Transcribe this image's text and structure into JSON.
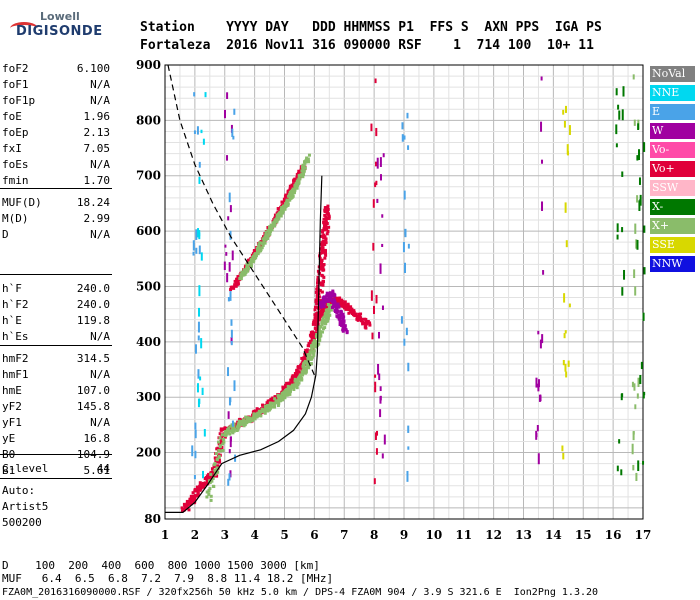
{
  "logo": {
    "line1": "Lowell",
    "line2": "DIGISONDE"
  },
  "header": {
    "row1": "Station    YYYY DAY   DDD HHMMSS P1  FFS S  AXN PPS  IGA PS",
    "row2": "Fortaleza  2016 Nov11 316 090000 RSF    1  714 100  10+ 11"
  },
  "params_a": [
    {
      "k": "foF2",
      "v": "6.100"
    },
    {
      "k": "foF1",
      "v": "N/A"
    },
    {
      "k": "foF1p",
      "v": "N/A"
    },
    {
      "k": "foE",
      "v": "1.96"
    },
    {
      "k": "foEp",
      "v": "2.13"
    },
    {
      "k": "fxI",
      "v": "7.05"
    },
    {
      "k": "foEs",
      "v": "N/A"
    },
    {
      "k": "fmin",
      "v": "1.70"
    }
  ],
  "params_b": [
    {
      "k": "MUF(D)",
      "v": "18.24"
    },
    {
      "k": "M(D)",
      "v": "2.99"
    },
    {
      "k": "D",
      "v": "N/A"
    }
  ],
  "params_c": [
    {
      "k": "h`F",
      "v": "240.0"
    },
    {
      "k": "h`F2",
      "v": "240.0"
    },
    {
      "k": "h`E",
      "v": "119.8"
    },
    {
      "k": "h`Es",
      "v": "N/A"
    }
  ],
  "params_d": [
    {
      "k": "hmF2",
      "v": "314.5"
    },
    {
      "k": "hmF1",
      "v": "N/A"
    },
    {
      "k": "hmE",
      "v": "107.0"
    },
    {
      "k": "yF2",
      "v": "145.8"
    },
    {
      "k": "yF1",
      "v": "N/A"
    },
    {
      "k": "yE",
      "v": "16.8"
    },
    {
      "k": "B0",
      "v": "104.9"
    },
    {
      "k": "B1",
      "v": "5.61"
    }
  ],
  "params_e": [
    {
      "k": "C-level",
      "v": "44"
    }
  ],
  "autoscale": {
    "line1": "Auto:",
    "line2": "Artist5",
    "line3": "500200"
  },
  "legend": [
    {
      "label": "NoVal",
      "bg": "#808080",
      "fg": "#ffffff"
    },
    {
      "label": "NNE",
      "bg": "#00d8f0",
      "fg": "#ffffff"
    },
    {
      "label": "E",
      "bg": "#4aa3e8",
      "fg": "#ffffff"
    },
    {
      "label": "W",
      "bg": "#a000a0",
      "fg": "#ffffff"
    },
    {
      "label": "Vo-",
      "bg": "#ff4aa8",
      "fg": "#ffffff"
    },
    {
      "label": "Vo+",
      "bg": "#e0003a",
      "fg": "#ffffff"
    },
    {
      "label": "SSW",
      "bg": "#ffb6c8",
      "fg": "#ffffff"
    },
    {
      "label": "X-",
      "bg": "#007800",
      "fg": "#ffffff"
    },
    {
      "label": "X+",
      "bg": "#8abc6a",
      "fg": "#ffffff"
    },
    {
      "label": "SSE",
      "bg": "#d8d800",
      "fg": "#ffffff"
    },
    {
      "label": "NNW",
      "bg": "#1010e0",
      "fg": "#ffffff"
    }
  ],
  "footer": {
    "d_row": "D    100  200  400  600  800 1000 1500 3000 [km]",
    "muf_row": "MUF   6.4  6.5  6.8  7.2  7.9  8.8 11.4 18.2 [MHz]",
    "file_row": "FZA0M_2016316090000.RSF / 320fx256h 50 kHz 5.0 km / DPS-4 FZA0M 904 / 3.9 S 321.6 E  Ion2Png 1.3.20"
  },
  "chart_data": {
    "type": "scatter",
    "title": "",
    "xlabel": "",
    "ylabel": "",
    "xlim": [
      1,
      17
    ],
    "ylim": [
      80,
      900
    ],
    "xticks": [
      1,
      2,
      3,
      4,
      5,
      6,
      7,
      8,
      9,
      10,
      11,
      12,
      13,
      14,
      15,
      16,
      17
    ],
    "yticks": [
      200,
      300,
      400,
      500,
      600,
      700,
      800,
      900
    ],
    "ytick_labels_extra": [
      80
    ],
    "grid": true,
    "series": [
      {
        "name": "Vo+",
        "color": "#e0003a",
        "kind": "trace",
        "points": [
          [
            1.6,
            100
          ],
          [
            1.9,
            120
          ],
          [
            2.3,
            150
          ],
          [
            2.6,
            165
          ],
          [
            2.9,
            240
          ],
          [
            3.3,
            250
          ],
          [
            3.8,
            265
          ],
          [
            4.3,
            285
          ],
          [
            4.8,
            305
          ],
          [
            5.2,
            330
          ],
          [
            5.5,
            355
          ],
          [
            5.8,
            390
          ],
          [
            6.0,
            430
          ],
          [
            6.1,
            480
          ],
          [
            6.2,
            540
          ],
          [
            6.3,
            600
          ],
          [
            6.4,
            650
          ]
        ]
      },
      {
        "name": "Vo+",
        "color": "#e0003a",
        "kind": "trace",
        "points": [
          [
            6.0,
            440
          ],
          [
            6.3,
            460
          ],
          [
            6.6,
            480
          ],
          [
            6.9,
            470
          ],
          [
            7.3,
            455
          ],
          [
            7.8,
            430
          ]
        ]
      },
      {
        "name": "X+",
        "color": "#8abc6a",
        "kind": "trace",
        "points": [
          [
            2.4,
            120
          ],
          [
            2.9,
            235
          ],
          [
            3.5,
            255
          ],
          [
            4.0,
            270
          ],
          [
            4.6,
            290
          ],
          [
            5.0,
            310
          ],
          [
            5.4,
            330
          ],
          [
            5.7,
            360
          ],
          [
            6.0,
            400
          ],
          [
            6.3,
            440
          ],
          [
            6.5,
            470
          ]
        ]
      },
      {
        "name": "Vo+",
        "color": "#e0003a",
        "kind": "echo2",
        "points": [
          [
            3.2,
            500
          ],
          [
            3.6,
            530
          ],
          [
            4.0,
            565
          ],
          [
            4.4,
            600
          ],
          [
            4.8,
            640
          ],
          [
            5.1,
            670
          ],
          [
            5.4,
            700
          ],
          [
            5.6,
            720
          ]
        ]
      },
      {
        "name": "X+",
        "color": "#8abc6a",
        "kind": "echo2",
        "points": [
          [
            3.5,
            520
          ],
          [
            3.9,
            550
          ],
          [
            4.3,
            590
          ],
          [
            4.7,
            625
          ],
          [
            5.1,
            660
          ],
          [
            5.4,
            690
          ],
          [
            5.8,
            740
          ]
        ]
      },
      {
        "name": "W",
        "color": "#a000a0",
        "kind": "trace",
        "points": [
          [
            6.2,
            470
          ],
          [
            6.5,
            490
          ],
          [
            6.8,
            450
          ],
          [
            7.0,
            420
          ]
        ]
      }
    ],
    "profile": {
      "name": "profile",
      "color": "#000000",
      "points": [
        [
          1.0,
          92
        ],
        [
          1.6,
          92
        ],
        [
          2.0,
          110
        ],
        [
          2.4,
          140
        ],
        [
          2.9,
          180
        ],
        [
          3.5,
          195
        ],
        [
          4.2,
          205
        ],
        [
          4.8,
          220
        ],
        [
          5.3,
          240
        ],
        [
          5.7,
          270
        ],
        [
          5.9,
          300
        ],
        [
          6.05,
          340
        ],
        [
          6.1,
          380
        ],
        [
          6.15,
          500
        ],
        [
          6.2,
          620
        ],
        [
          6.25,
          700
        ]
      ]
    },
    "dashed_curve": {
      "name": "MUF",
      "color": "#000000",
      "points": [
        [
          1.1,
          900
        ],
        [
          1.5,
          800
        ],
        [
          2.0,
          720
        ],
        [
          2.6,
          650
        ],
        [
          3.2,
          590
        ],
        [
          3.8,
          540
        ],
        [
          4.4,
          490
        ],
        [
          5.0,
          440
        ],
        [
          5.6,
          390
        ],
        [
          6.0,
          340
        ]
      ]
    }
  }
}
